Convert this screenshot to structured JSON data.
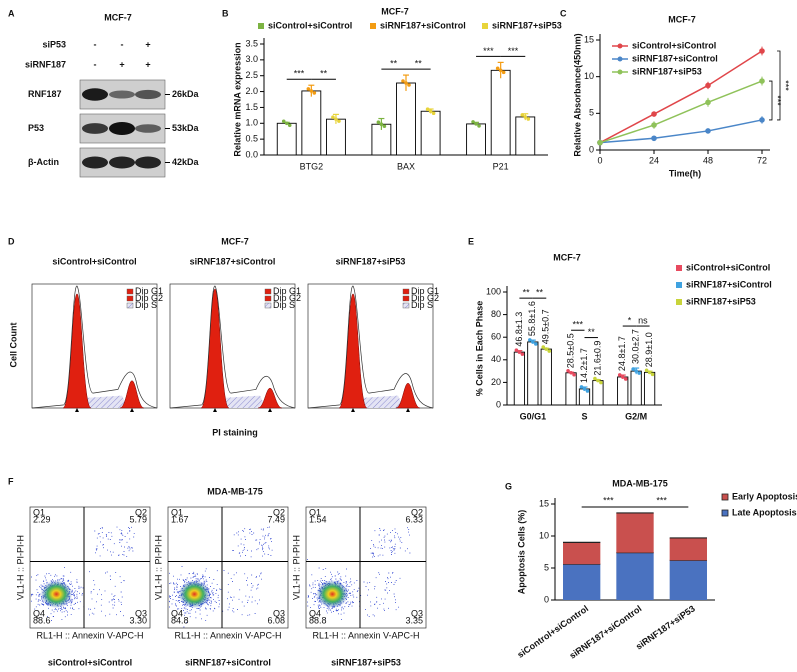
{
  "panels": [
    "A",
    "B",
    "C",
    "D",
    "E",
    "F",
    "G"
  ],
  "blot": {
    "title": "MCF-7",
    "conditions": [
      {
        "name": "siP53",
        "values": [
          "-",
          "-",
          "+"
        ]
      },
      {
        "name": "siRNF187",
        "values": [
          "-",
          "+",
          "+"
        ]
      }
    ],
    "bands": [
      {
        "name": "RNF187",
        "size": "26kDa"
      },
      {
        "name": "P53",
        "size": "53kDa"
      },
      {
        "name": "β-Actin",
        "size": "42kDa"
      }
    ]
  },
  "cell_cycle": {
    "title": "MCF-7",
    "ylabel": "Cell Count",
    "xlabel": "PI staining",
    "samples": [
      "siControl+siControl",
      "siRNF187+siControl",
      "siRNF187+siP53"
    ],
    "legend": [
      "Dip G1",
      "Dip G2",
      "Dip S"
    ]
  },
  "apoptosis_flow": {
    "title": "MDA-MB-175",
    "xlabel": "RL1-H :: Annexin V-APC-H",
    "ylabel": "VL1-H :: PI-PI-H",
    "samples": [
      {
        "name": "siControl+siControl",
        "quadrants": [
          {
            "label": "Q1",
            "value": "2.29"
          },
          {
            "label": "Q2",
            "value": "5.79"
          },
          {
            "label": "Q4",
            "value": "88.6"
          },
          {
            "label": "Q3",
            "value": "3.30"
          }
        ]
      },
      {
        "name": "siRNF187+siControl",
        "quadrants": [
          {
            "label": "Q1",
            "value": "1.67"
          },
          {
            "label": "Q2",
            "value": "7.49"
          },
          {
            "label": "Q4",
            "value": "84.8"
          },
          {
            "label": "Q3",
            "value": "6.08"
          }
        ]
      },
      {
        "name": "siRNF187+siP53",
        "quadrants": [
          {
            "label": "Q1",
            "value": "1.54"
          },
          {
            "label": "Q2",
            "value": "6.33"
          },
          {
            "label": "Q4",
            "value": "88.8"
          },
          {
            "label": "Q3",
            "value": "3.35"
          }
        ]
      }
    ]
  },
  "chart_data": [
    {
      "type": "bar",
      "title": "MCF-7",
      "ylabel": "Relative mRNA expression",
      "categories": [
        "BTG2",
        "BAX",
        "P21"
      ],
      "series": [
        {
          "name": "siControl+siControl",
          "color": "#7cb342",
          "values": [
            1.0,
            0.97,
            0.98
          ],
          "errors": [
            0.03,
            0.18,
            0.05
          ]
        },
        {
          "name": "siRNF187+siControl",
          "color": "#f39c12",
          "values": [
            2.02,
            2.27,
            2.67
          ],
          "errors": [
            0.18,
            0.25,
            0.25
          ]
        },
        {
          "name": "siRNF187+siP53",
          "color": "#e8d43a",
          "values": [
            1.13,
            1.38,
            1.2
          ],
          "errors": [
            0.15,
            0.07,
            0.1
          ]
        }
      ],
      "significance": [
        [
          "***",
          "**"
        ],
        [
          "**",
          "**"
        ],
        [
          "***",
          "***"
        ]
      ],
      "ylim": [
        0,
        3.5
      ],
      "yticks": [
        {
          "value": 0,
          "label": "0.0"
        },
        0.5,
        {
          "value": 1,
          "label": "1.0"
        },
        1.5,
        {
          "value": 2,
          "label": "2.0"
        },
        2.5,
        {
          "value": 3,
          "label": "3.0"
        },
        3.5
      ],
      "legend": "top"
    },
    {
      "type": "line",
      "title": "MCF-7",
      "xlabel": "Time(h)",
      "ylabel": "Relative Absorbance(450nm)",
      "x": [
        0,
        24,
        48,
        72
      ],
      "series": [
        {
          "name": "siControl+siControl",
          "color": "#e0464a",
          "values": [
            1.0,
            4.9,
            8.8,
            13.5
          ],
          "errors": [
            0.1,
            0.3,
            0.5,
            0.6
          ]
        },
        {
          "name": "siRNF187+siControl",
          "color": "#4a86c8",
          "values": [
            1.0,
            1.6,
            2.6,
            4.1
          ],
          "errors": [
            0.1,
            0.3,
            0.3,
            0.5
          ]
        },
        {
          "name": "siRNF187+siP53",
          "color": "#8fc25a",
          "values": [
            1.0,
            3.4,
            6.5,
            9.4
          ],
          "errors": [
            0.1,
            0.5,
            0.6,
            0.6
          ]
        }
      ],
      "significance": [
        "***",
        "***"
      ],
      "xlim": [
        0,
        72
      ],
      "xticks": [
        0,
        24,
        48,
        72
      ],
      "ylim": [
        0,
        15
      ],
      "yticks": [
        0,
        5,
        10,
        15
      ],
      "legend": "upper left"
    },
    {
      "type": "bar",
      "title": "MCF-7",
      "ylabel": "% Cells in Each Phase",
      "categories": [
        "G0/G1",
        "S",
        "G2/M"
      ],
      "series": [
        {
          "name": "siControl+siControl",
          "color": "#e84a5f",
          "values": [
            46.8,
            28.5,
            24.8
          ],
          "errors": [
            1.3,
            0.5,
            1.7
          ],
          "value_labels": [
            "46.8±1.3",
            "28.5±0.5",
            "24.8±1.7"
          ]
        },
        {
          "name": "siRNF187+siControl",
          "color": "#3fa2e0",
          "values": [
            55.8,
            14.2,
            30.0
          ],
          "errors": [
            1.6,
            1.7,
            2.7
          ],
          "value_labels": [
            "55.8±1.6",
            "14.2±1.7",
            "30.0±2.7"
          ]
        },
        {
          "name": "siRNF187+siP53",
          "color": "#c8d43a",
          "values": [
            49.5,
            21.6,
            28.9
          ],
          "errors": [
            0.7,
            0.9,
            1.0
          ],
          "value_labels": [
            "49.5±0.7",
            "21.6±0.9",
            "28.9±1.0"
          ]
        }
      ],
      "significance": [
        [
          "**",
          "**"
        ],
        [
          "***",
          "**"
        ],
        [
          "*",
          "ns"
        ]
      ],
      "ylim": [
        0,
        100
      ],
      "yticks": [
        0,
        20,
        40,
        60,
        80,
        100
      ],
      "legend": "right"
    },
    {
      "type": "stacked-bar",
      "title": "MDA-MB-175",
      "ylabel": "Apoptosis Cells (%)",
      "categories": [
        "siControl+siControl",
        "siRNF187+siControl",
        "siRNF187+siP53"
      ],
      "series": [
        {
          "name": "Late Apoptosis",
          "color": "#4a72c0",
          "values": [
            5.6,
            7.4,
            6.2
          ]
        },
        {
          "name": "Early Apoptosis",
          "color": "#c9504e",
          "values": [
            3.4,
            6.2,
            3.5
          ]
        }
      ],
      "significance": [
        "***",
        "***"
      ],
      "ylim": [
        0,
        15
      ],
      "yticks": [
        0,
        5,
        10,
        15
      ],
      "legend": "right"
    }
  ]
}
